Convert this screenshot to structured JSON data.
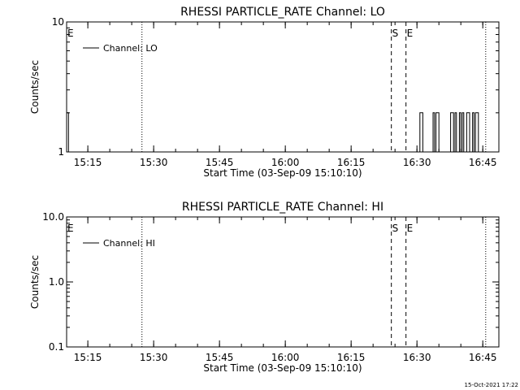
{
  "footer_timestamp": "15-Oct-2021 17:22",
  "chart_data": [
    {
      "type": "line",
      "title": "RHESSI PARTICLE_RATE Channel: LO",
      "xlabel": "Start Time (03-Sep-09 15:10:10)",
      "ylabel": "Counts/sec",
      "yscale": "log",
      "ylim": [
        1,
        10
      ],
      "xlim": [
        "15:10:10",
        "16:48:40"
      ],
      "xticks": [
        "15:15",
        "15:30",
        "15:45",
        "16:00",
        "16:15",
        "16:30",
        "16:45"
      ],
      "yticks": [
        {
          "value": 1,
          "label": "1"
        },
        {
          "value": 10,
          "label": "10"
        }
      ],
      "legend": {
        "position": "top-left",
        "entries": [
          "Channel: LO"
        ]
      },
      "series": [
        {
          "name": "Channel: LO",
          "x": [
            "15:10:10",
            "15:10:35",
            "15:11:00",
            "16:30:20",
            "16:30:40",
            "16:31:00",
            "16:31:20",
            "16:33:20",
            "16:33:40",
            "16:34:00",
            "16:34:20",
            "16:34:40",
            "16:35:00",
            "16:35:20",
            "16:37:20",
            "16:37:40",
            "16:38:00",
            "16:38:20",
            "16:38:40",
            "16:39:00",
            "16:39:20",
            "16:39:40",
            "16:40:00",
            "16:40:20",
            "16:40:40",
            "16:41:00",
            "16:41:20",
            "16:41:40",
            "16:42:00",
            "16:42:20",
            "16:42:40",
            "16:43:00",
            "16:43:20",
            "16:43:40",
            "16:44:00",
            "16:44:20"
          ],
          "y": [
            2,
            1,
            1,
            1,
            2,
            2,
            1,
            1,
            2,
            1,
            2,
            2,
            1,
            1,
            1,
            2,
            2,
            1,
            2,
            1,
            1,
            2,
            1,
            2,
            1,
            1,
            2,
            2,
            1,
            1,
            2,
            1,
            2,
            2,
            1,
            1
          ]
        }
      ],
      "vlines": [
        {
          "x": "15:10:10",
          "style": "dotted",
          "label": "E"
        },
        {
          "x": "15:27:20",
          "style": "dotted",
          "label": ""
        },
        {
          "x": "16:24:10",
          "style": "dashed",
          "label": "S"
        },
        {
          "x": "16:27:30",
          "style": "dashed",
          "label": "E"
        },
        {
          "x": "16:45:40",
          "style": "dotted",
          "label": ""
        }
      ]
    },
    {
      "type": "line",
      "title": "RHESSI PARTICLE_RATE Channel: HI",
      "xlabel": "Start Time (03-Sep-09 15:10:10)",
      "ylabel": "Counts/sec",
      "yscale": "log",
      "ylim": [
        0.1,
        10
      ],
      "xlim": [
        "15:10:10",
        "16:48:40"
      ],
      "xticks": [
        "15:15",
        "15:30",
        "15:45",
        "16:00",
        "16:15",
        "16:30",
        "16:45"
      ],
      "yticks": [
        {
          "value": 0.1,
          "label": "0.1"
        },
        {
          "value": 1,
          "label": "1.0"
        },
        {
          "value": 10,
          "label": "10.0"
        }
      ],
      "legend": {
        "position": "top-left",
        "entries": [
          "Channel: HI"
        ]
      },
      "series": [
        {
          "name": "Channel: HI",
          "x": [],
          "y": []
        }
      ],
      "vlines": [
        {
          "x": "15:10:10",
          "style": "dotted",
          "label": "E"
        },
        {
          "x": "15:27:20",
          "style": "dotted",
          "label": ""
        },
        {
          "x": "16:24:10",
          "style": "dashed",
          "label": "S"
        },
        {
          "x": "16:27:30",
          "style": "dashed",
          "label": "E"
        },
        {
          "x": "16:45:40",
          "style": "dotted",
          "label": ""
        }
      ]
    }
  ]
}
